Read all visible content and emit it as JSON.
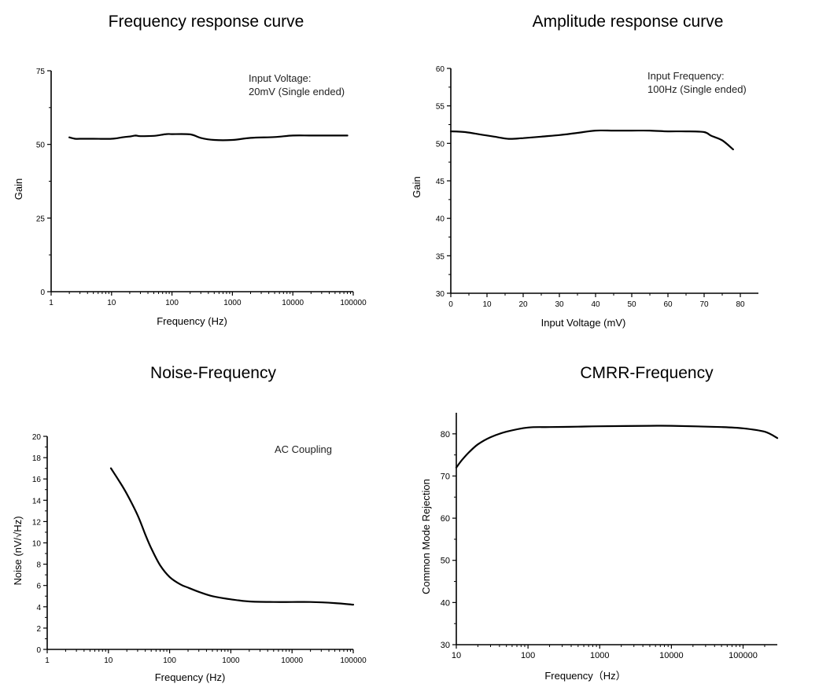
{
  "chart_data": [
    {
      "type": "line",
      "title": "Frequency response curve",
      "xlabel": "Frequency (Hz)",
      "ylabel": "Gain",
      "xscale": "log",
      "xlim": [
        1,
        100000
      ],
      "ylim": [
        0,
        75
      ],
      "x_ticks": [
        1,
        10,
        100,
        1000,
        10000,
        100000
      ],
      "x_tick_labels": [
        "1",
        "10",
        "100",
        "1000",
        "10000",
        "100000"
      ],
      "y_ticks": [
        0,
        25,
        50,
        75
      ],
      "y_tick_labels": [
        "0",
        "25",
        "50",
        "75"
      ],
      "annotation": [
        "Input Voltage:",
        "20mV (Single ended)"
      ],
      "series": [
        {
          "x": [
            2,
            2.5,
            3,
            5,
            10,
            15,
            20,
            25,
            30,
            50,
            80,
            100,
            200,
            300,
            500,
            1000,
            2000,
            5000,
            10000,
            20000,
            50000,
            80000
          ],
          "values": [
            52.4,
            51.9,
            51.9,
            51.9,
            51.9,
            52.4,
            52.7,
            53.0,
            52.8,
            52.9,
            53.5,
            53.5,
            53.4,
            52.2,
            51.5,
            51.5,
            52.2,
            52.5,
            53.0,
            53.0,
            53.0,
            53.0
          ]
        }
      ]
    },
    {
      "type": "line",
      "title": "Amplitude response curve",
      "xlabel": "Input Voltage (mV)",
      "ylabel": "Gain",
      "xlim": [
        0,
        85
      ],
      "ylim": [
        30,
        60
      ],
      "x_ticks": [
        0,
        10,
        20,
        30,
        40,
        50,
        60,
        70,
        80
      ],
      "x_tick_labels": [
        "0",
        "10",
        "20",
        "30",
        "40",
        "50",
        "60",
        "70",
        "80"
      ],
      "y_ticks": [
        30,
        35,
        40,
        45,
        50,
        55,
        60
      ],
      "y_tick_labels": [
        "30",
        "35",
        "40",
        "45",
        "50",
        "55",
        "60"
      ],
      "annotation": [
        "Input Frequency:",
        "100Hz (Single ended)"
      ],
      "series": [
        {
          "x": [
            0,
            4,
            8,
            12,
            16,
            20,
            25,
            30,
            35,
            40,
            45,
            50,
            55,
            60,
            65,
            70,
            72,
            75,
            78
          ],
          "values": [
            51.6,
            51.5,
            51.2,
            50.9,
            50.6,
            50.7,
            50.9,
            51.1,
            51.4,
            51.7,
            51.7,
            51.7,
            51.7,
            51.6,
            51.6,
            51.5,
            51.0,
            50.4,
            49.2
          ]
        }
      ]
    },
    {
      "type": "line",
      "title": "Noise-Frequency",
      "xlabel": "Frequency (Hz)",
      "ylabel": "Noise (nV/√Hz)",
      "xscale": "log",
      "xlim": [
        1,
        100000
      ],
      "ylim": [
        0,
        20
      ],
      "x_ticks": [
        1,
        10,
        100,
        1000,
        10000,
        100000
      ],
      "x_tick_labels": [
        "1",
        "10",
        "100",
        "1000",
        "10000",
        "100000"
      ],
      "y_ticks": [
        0,
        2,
        4,
        6,
        8,
        10,
        12,
        14,
        16,
        18,
        20
      ],
      "y_tick_labels": [
        "0",
        "2",
        "4",
        "6",
        "8",
        "10",
        "12",
        "14",
        "16",
        "18",
        "20"
      ],
      "annotation": [
        "AC Coupling"
      ],
      "series": [
        {
          "x": [
            11,
            15,
            20,
            30,
            40,
            50,
            70,
            100,
            150,
            200,
            300,
            500,
            1000,
            2000,
            5000,
            10000,
            20000,
            50000,
            100000
          ],
          "values": [
            17.0,
            15.8,
            14.6,
            12.6,
            10.8,
            9.5,
            7.9,
            6.8,
            6.1,
            5.8,
            5.4,
            5.0,
            4.7,
            4.5,
            4.45,
            4.45,
            4.45,
            4.35,
            4.2
          ]
        }
      ]
    },
    {
      "type": "line",
      "title": "CMRR-Frequency",
      "xlabel": "Frequency（Hz）",
      "ylabel": "Common Mode Rejection",
      "xscale": "log",
      "xlim": [
        10,
        300000
      ],
      "ylim": [
        30,
        85
      ],
      "x_ticks": [
        10,
        100,
        1000,
        10000,
        100000
      ],
      "x_tick_labels": [
        "10",
        "100",
        "1000",
        "10000",
        "100000"
      ],
      "y_ticks": [
        30,
        40,
        50,
        60,
        70,
        80
      ],
      "y_tick_labels": [
        "30",
        "40",
        "50",
        "60",
        "70",
        "80"
      ],
      "annotation": [],
      "series": [
        {
          "x": [
            10,
            12,
            15,
            20,
            30,
            50,
            100,
            200,
            500,
            1000,
            5000,
            10000,
            50000,
            100000,
            200000,
            300000
          ],
          "values": [
            72,
            73.8,
            75.6,
            77.5,
            79.2,
            80.5,
            81.5,
            81.6,
            81.7,
            81.8,
            81.9,
            81.9,
            81.6,
            81.3,
            80.5,
            79
          ]
        }
      ]
    }
  ]
}
